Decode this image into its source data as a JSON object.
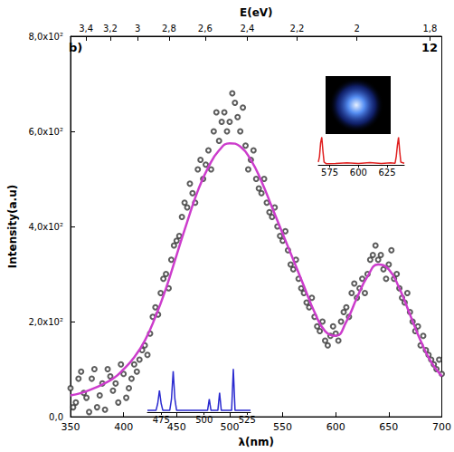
{
  "chart_data": {
    "type": "scatter",
    "panel_label": "b)",
    "annotation": "12",
    "x_label": "λ(nm)",
    "y_label": "Intensity(a.u)",
    "x2_label": "E(eV)",
    "xlim": [
      350,
      700
    ],
    "xticks": [
      350,
      400,
      450,
      500,
      550,
      600,
      650,
      700
    ],
    "ylim": [
      0,
      800
    ],
    "yticks": [
      {
        "value": 0,
        "label": "0,0"
      },
      {
        "value": 200,
        "label": "2,0x10²"
      },
      {
        "value": 400,
        "label": "4,0x10²"
      },
      {
        "value": 600,
        "label": "6,0x10²"
      },
      {
        "value": 800,
        "label": "8,0x10²"
      }
    ],
    "x2ticks": [
      {
        "value": 3.4,
        "label": "3,4"
      },
      {
        "value": 3.2,
        "label": "3,2"
      },
      {
        "value": 3,
        "label": "3"
      },
      {
        "value": 2.8,
        "label": "2,8"
      },
      {
        "value": 2.6,
        "label": "2,6"
      },
      {
        "value": 2.4,
        "label": "2,4"
      },
      {
        "value": 2.2,
        "label": "2,2"
      },
      {
        "value": 2,
        "label": "2"
      },
      {
        "value": 1.8,
        "label": "1,8"
      }
    ],
    "grid": false,
    "series": [
      {
        "type": "scatter",
        "marker": "circle",
        "color": "#333333",
        "x": [
          350,
          352.5,
          355,
          357.5,
          360,
          362.5,
          365,
          367.5,
          370,
          372.5,
          375,
          377.5,
          380,
          382.5,
          385,
          387.5,
          390,
          392.5,
          395,
          397.5,
          400,
          402.5,
          405,
          407.5,
          410,
          412.5,
          415,
          417.5,
          420,
          422.5,
          425,
          427.5,
          430,
          432.5,
          435,
          437.5,
          440,
          442.5,
          445,
          447.5,
          450,
          452.5,
          455,
          457.5,
          460,
          462.5,
          465,
          467.5,
          470,
          472.5,
          475,
          477.5,
          480,
          482.5,
          485,
          487.5,
          490,
          492.5,
          495,
          497.5,
          500,
          502.5,
          505,
          507.5,
          510,
          512.5,
          515,
          517.5,
          520,
          522.5,
          525,
          527.5,
          530,
          532.5,
          535,
          537.5,
          540,
          542.5,
          545,
          547.5,
          550,
          552.5,
          555,
          557.5,
          560,
          562.5,
          565,
          567.5,
          570,
          572.5,
          575,
          577.5,
          580,
          582.5,
          585,
          587.5,
          590,
          592.5,
          595,
          597.5,
          600,
          602.5,
          605,
          607.5,
          610,
          612.5,
          615,
          617.5,
          620,
          622.5,
          625,
          627.5,
          630,
          632.5,
          635,
          637.5,
          640,
          642.5,
          645,
          647.5,
          650,
          652.5,
          655,
          657.5,
          660,
          662.5,
          665,
          667.5,
          670,
          672.5,
          675,
          677.5,
          680,
          682.5,
          685,
          687.5,
          690,
          692.5,
          695,
          697.5,
          700
        ],
        "values": [
          60,
          20,
          30,
          80,
          95,
          50,
          40,
          10,
          80,
          100,
          20,
          45,
          70,
          15,
          100,
          85,
          55,
          70,
          30,
          110,
          90,
          40,
          60,
          80,
          110,
          95,
          120,
          140,
          150,
          130,
          175,
          210,
          230,
          215,
          260,
          290,
          300,
          270,
          330,
          360,
          370,
          380,
          420,
          450,
          440,
          490,
          470,
          450,
          520,
          540,
          500,
          530,
          560,
          520,
          600,
          640,
          580,
          620,
          640,
          600,
          620,
          680,
          660,
          630,
          600,
          650,
          570,
          520,
          540,
          560,
          500,
          480,
          470,
          500,
          450,
          430,
          420,
          440,
          400,
          380,
          370,
          390,
          350,
          320,
          310,
          330,
          290,
          270,
          260,
          240,
          230,
          250,
          210,
          190,
          180,
          200,
          160,
          150,
          170,
          190,
          175,
          160,
          200,
          220,
          230,
          210,
          260,
          280,
          250,
          270,
          290,
          260,
          300,
          330,
          340,
          360,
          330,
          340,
          310,
          290,
          320,
          350,
          290,
          300,
          270,
          250,
          240,
          260,
          220,
          200,
          180,
          190,
          150,
          170,
          140,
          130,
          120,
          110,
          100,
          120,
          90
        ]
      },
      {
        "type": "line",
        "color": "#cc3ccc",
        "x": [
          350,
          360,
          370,
          380,
          390,
          400,
          410,
          420,
          430,
          440,
          450,
          460,
          470,
          480,
          490,
          500,
          510,
          520,
          530,
          540,
          550,
          560,
          570,
          580,
          590,
          600,
          610,
          620,
          630,
          640,
          650,
          660,
          670,
          680,
          690,
          700
        ],
        "values": [
          45,
          50,
          58,
          68,
          80,
          100,
          125,
          160,
          210,
          270,
          340,
          410,
          475,
          525,
          560,
          575,
          568,
          540,
          495,
          440,
          385,
          330,
          275,
          220,
          180,
          170,
          200,
          250,
          295,
          320,
          310,
          270,
          215,
          160,
          115,
          85
        ]
      }
    ],
    "insets": [
      {
        "type": "line",
        "color": "#2a2ad0",
        "tick_labels": "x",
        "xlim": [
          467,
          527
        ],
        "xticks": [
          475,
          500,
          525
        ],
        "ylim": [
          0,
          1.05
        ],
        "x": [
          467,
          472,
          473,
          474,
          475,
          476,
          480,
          481,
          482,
          483,
          484,
          495,
          502,
          503,
          504,
          508,
          509,
          510,
          516,
          517,
          518,
          527
        ],
        "values": [
          0.04,
          0.04,
          0.2,
          0.5,
          0.2,
          0.04,
          0.04,
          0.3,
          0.95,
          0.3,
          0.04,
          0.04,
          0.04,
          0.3,
          0.04,
          0.04,
          0.45,
          0.04,
          0.04,
          1.0,
          0.04,
          0.04
        ]
      },
      {
        "type": "line",
        "color": "#e02020",
        "tick_labels": "x",
        "xlim": [
          565,
          640
        ],
        "xticks": [
          575,
          600,
          625
        ],
        "ylim": [
          0,
          1.05
        ],
        "x": [
          565,
          566,
          567,
          568,
          569,
          570,
          572,
          580,
          590,
          600,
          610,
          620,
          628,
          632,
          633,
          634,
          635,
          636,
          637,
          640
        ],
        "values": [
          0.1,
          0.3,
          0.8,
          1.0,
          0.5,
          0.1,
          0.04,
          0.05,
          0.07,
          0.05,
          0.08,
          0.05,
          0.07,
          0.06,
          0.3,
          0.7,
          1.0,
          0.5,
          0.1,
          0.06
        ]
      }
    ]
  }
}
